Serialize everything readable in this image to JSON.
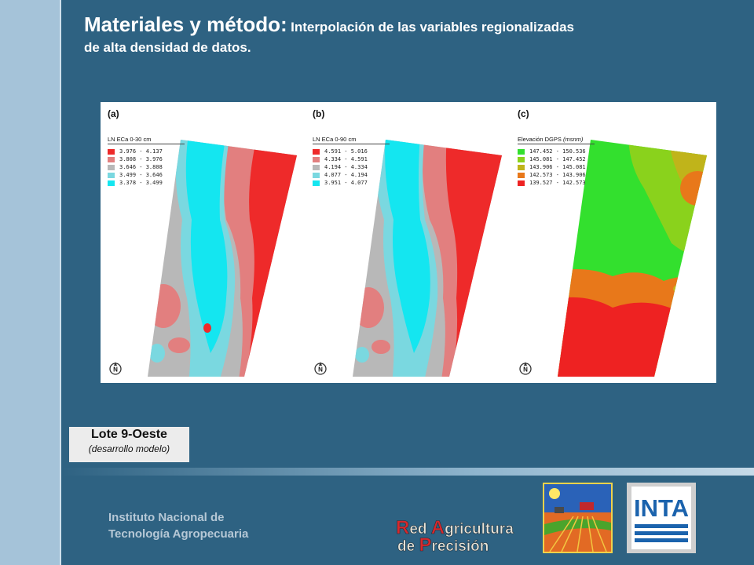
{
  "header": {
    "title": "Materiales y método:",
    "subtitle_line1": "Interpolación de las variables regionalizadas",
    "subtitle_line2": "de alta densidad de datos."
  },
  "figure": {
    "panels": [
      {
        "letter": "(a)",
        "legend_title": "LN ECa 0-30 cm",
        "legend_items": [
          {
            "label": "3.976 - 4.137",
            "color": "#ee2a2a"
          },
          {
            "label": "3.808 - 3.976",
            "color": "#e27f7f"
          },
          {
            "label": "3.646 - 3.808",
            "color": "#b8b8b8"
          },
          {
            "label": "3.499 - 3.646",
            "color": "#7ad8e0"
          },
          {
            "label": "3.378 - 3.499",
            "color": "#14e6f0"
          }
        ]
      },
      {
        "letter": "(b)",
        "legend_title": "LN ECa 0-90 cm",
        "legend_items": [
          {
            "label": "4.591 - 5.016",
            "color": "#ee2a2a"
          },
          {
            "label": "4.334 - 4.591",
            "color": "#e27f7f"
          },
          {
            "label": "4.194 - 4.334",
            "color": "#b8b8b8"
          },
          {
            "label": "4.077 - 4.194",
            "color": "#7ad8e0"
          },
          {
            "label": "3.951 - 4.077",
            "color": "#14e6f0"
          }
        ]
      },
      {
        "letter": "(c)",
        "legend_title": "Elevación DGPS",
        "legend_unit": "(msnm)",
        "legend_items": [
          {
            "label": "147.452 - 150.536",
            "color": "#33e02e"
          },
          {
            "label": "145.081 - 147.452",
            "color": "#8ad21c"
          },
          {
            "label": "143.906 - 145.081",
            "color": "#c0b41a"
          },
          {
            "label": "142.573 - 143.906",
            "color": "#e8781a"
          },
          {
            "label": "139.527 - 142.573",
            "color": "#ee2222"
          }
        ]
      }
    ],
    "north_label": "N"
  },
  "caption": {
    "title": "Lote 9-Oeste",
    "subtitle": "(desarrollo modelo)"
  },
  "footer": {
    "institute_line1": "Instituto Nacional de",
    "institute_line2": "Tecnología Agropecuaria",
    "red_logo": {
      "r_letter": "R",
      "r_rest": "ed ",
      "a_letter": "A",
      "a_rest": "gricultura",
      "de": "de ",
      "p_letter": "P",
      "p_rest": "recisión"
    },
    "inta_logo_text": "INTA"
  }
}
